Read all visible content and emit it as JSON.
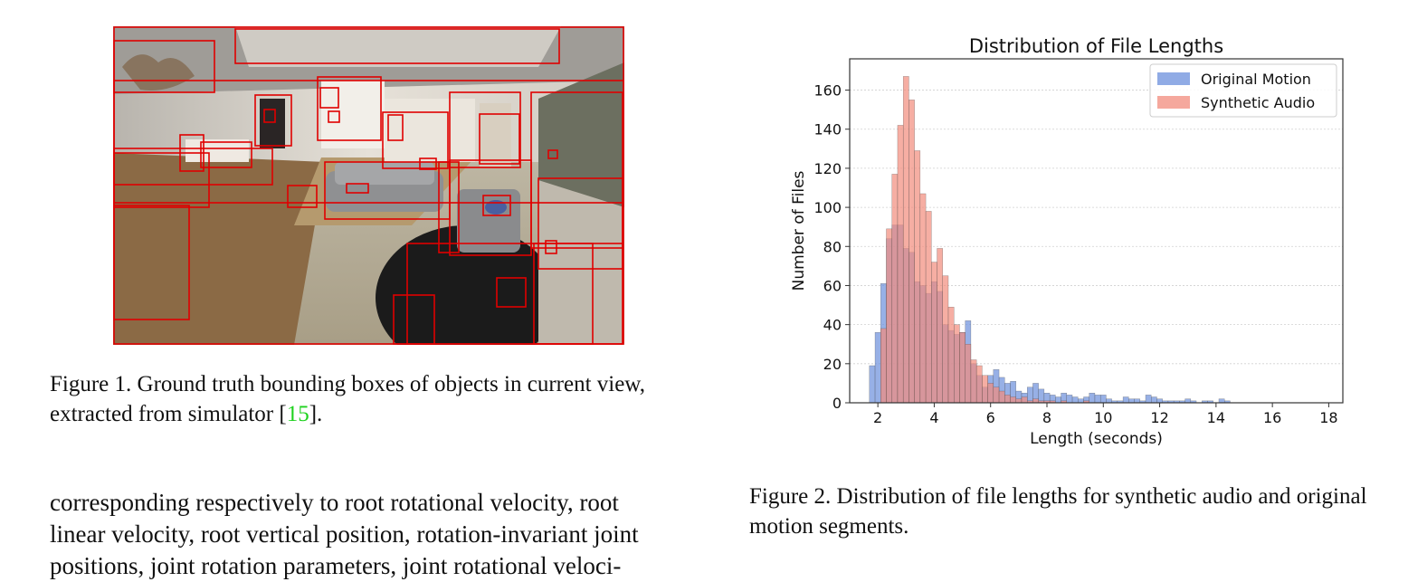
{
  "figure1": {
    "caption_prefix": "Figure 1. Ground truth bounding boxes of objects in current view, extracted from simulator [",
    "citation": "15",
    "caption_suffix": "]."
  },
  "figure2": {
    "caption": "Figure 2. Distribution of file lengths for synthetic audio and original motion segments."
  },
  "body_text": [
    "corresponding respectively to root rotational velocity, root",
    "linear velocity, root vertical position, rotation-invariant joint",
    "positions, joint rotation parameters, joint rotational veloci-"
  ],
  "colors": {
    "bbox": "#e00000",
    "original_motion": "#6b8fdc",
    "synthetic_audio": "#f28b7c",
    "citation": "#1fd21f"
  },
  "chart_data": {
    "type": "bar",
    "title": "Distribution of File Lengths",
    "xlabel": "Length (seconds)",
    "ylabel": "Number of Files",
    "xlim": [
      1.0,
      18.5
    ],
    "ylim": [
      0,
      176
    ],
    "xticks": [
      2,
      4,
      6,
      8,
      10,
      12,
      14,
      16,
      18
    ],
    "yticks": [
      0,
      20,
      40,
      60,
      80,
      100,
      120,
      140,
      160
    ],
    "grid": "horizontal",
    "legend_position": "top-right",
    "bin_width": 0.2,
    "series": [
      {
        "name": "Original Motion",
        "color": "#6b8fdc",
        "x_start": 1.7,
        "values": [
          19,
          36,
          61,
          84,
          91,
          91,
          79,
          77,
          62,
          60,
          56,
          62,
          57,
          40,
          37,
          35,
          36,
          42,
          20,
          14,
          8,
          14,
          17,
          13,
          10,
          11,
          6,
          5,
          8,
          10,
          7,
          5,
          4,
          3,
          5,
          4,
          3,
          2,
          3,
          5,
          4,
          4,
          2,
          1,
          1,
          3,
          2,
          2,
          1,
          4,
          3,
          2,
          1,
          1,
          1,
          1,
          2,
          1,
          0,
          1,
          1,
          0,
          2,
          1
        ]
      },
      {
        "name": "Synthetic Audio",
        "color": "#f28b7c",
        "x_start": 1.7,
        "values": [
          0,
          0,
          38,
          89,
          117,
          142,
          167,
          155,
          129,
          107,
          98,
          72,
          79,
          65,
          49,
          40,
          36,
          30,
          22,
          19,
          14,
          10,
          8,
          6,
          4,
          3,
          2,
          3,
          1,
          2,
          1,
          1,
          1,
          0,
          1,
          0,
          0,
          0,
          1,
          0,
          0,
          0,
          0,
          0,
          0,
          0,
          0,
          0,
          0,
          0,
          0,
          0,
          0,
          0,
          0,
          0,
          0,
          0,
          0,
          0,
          0,
          0,
          0,
          0
        ]
      }
    ]
  }
}
